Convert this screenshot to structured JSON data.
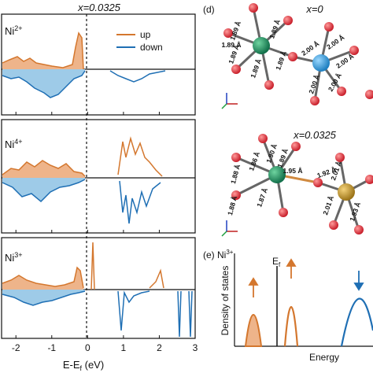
{
  "figure": {
    "dos_title": "x=0.0325",
    "panels": [
      {
        "label": "Ni",
        "sup": "2+"
      },
      {
        "label": "Ni",
        "sup": "4+"
      },
      {
        "label": "Ni",
        "sup": "3+"
      }
    ],
    "legend": {
      "up": "up",
      "down": "down"
    },
    "xaxis": {
      "label": "E-E",
      "label_sub": "f",
      "label_unit": " (eV)",
      "ticks": [
        "-2",
        "-1",
        "0",
        "1",
        "2",
        "3"
      ],
      "tick_values": [
        -2,
        -1,
        0,
        1,
        2,
        3
      ],
      "range": [
        -2.4,
        3.0
      ]
    },
    "structure_top": {
      "panel_letter": "(d)",
      "title": "x=0",
      "left_bonds": [
        "1.89 Å",
        "1.89 Å",
        "1.89 Å",
        "1.89 Å",
        "1.89 Å",
        "1.89 Å"
      ],
      "right_bonds": [
        "2.00 Å",
        "2.00 Å",
        "2.00 Å",
        "2.00 Å",
        "2.00 Å"
      ]
    },
    "structure_bottom": {
      "title": "x=0.0325",
      "left_bonds": [
        "1.88 Å",
        "1.86 Å",
        "1.90 Å",
        "1.88 Å",
        "1.87 Å",
        "1.89 Å",
        "1.95 Å"
      ],
      "right_bonds": [
        "1.92 Å",
        "2.01 Å",
        "2.01 Å",
        "1.93 Å"
      ]
    },
    "schematic": {
      "panel_letter": "(e)",
      "ion": "Ni",
      "ion_sup": "3+",
      "fermi_label": "E",
      "fermi_sub": "f",
      "ylabel": "Density of states",
      "xlabel": "Energy"
    },
    "colors": {
      "up": "#d4772e",
      "down": "#1f6fb4",
      "fill_up": "#eeb48a",
      "fill_down": "#9ecbe8",
      "green_atom": "#1e8a5a",
      "blue_atom": "#3aa0d8",
      "gold_atom": "#c79a2a",
      "oxygen": "#d8313a"
    }
  }
}
